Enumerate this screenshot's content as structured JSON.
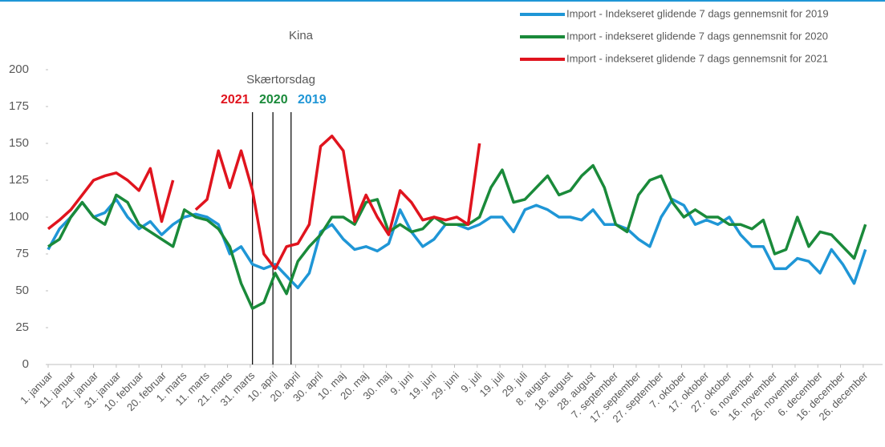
{
  "chart_data": {
    "type": "line",
    "title": "Kina",
    "x": [
      1,
      6,
      11,
      16,
      21,
      26,
      31,
      36,
      41,
      46,
      51,
      56,
      61,
      66,
      71,
      76,
      81,
      86,
      91,
      96,
      101,
      106,
      111,
      116,
      121,
      126,
      131,
      136,
      141,
      146,
      151,
      156,
      161,
      166,
      171,
      176,
      181,
      186,
      191,
      196,
      201,
      206,
      211,
      216,
      221,
      226,
      231,
      236,
      241,
      246,
      251,
      256,
      261,
      266,
      271,
      276,
      281,
      286,
      291,
      296,
      301,
      306,
      311,
      316,
      321,
      326,
      331,
      336,
      341,
      346,
      351,
      356,
      361
    ],
    "series": [
      {
        "name": "Import - Indekseret glidende 7 dags gennemsnit for 2019",
        "color": "#1f96d6",
        "values": [
          78,
          92,
          100,
          110,
          100,
          103,
          112,
          100,
          92,
          97,
          88,
          95,
          100,
          102,
          100,
          95,
          75,
          80,
          68,
          65,
          68,
          60,
          52,
          62,
          90,
          95,
          85,
          78,
          80,
          77,
          82,
          105,
          90,
          80,
          85,
          95,
          95,
          92,
          95,
          100,
          100,
          90,
          105,
          108,
          105,
          100,
          100,
          98,
          105,
          95,
          95,
          92,
          85,
          80,
          100,
          112,
          108,
          95,
          98,
          95,
          100,
          88,
          80,
          80,
          65,
          65,
          72,
          70,
          62,
          78,
          68,
          55,
          78
        ]
      },
      {
        "name": "Import - indekseret glidende 7 dags gennemsnit for 2020",
        "color": "#1a8a3a",
        "values": [
          80,
          85,
          100,
          110,
          100,
          95,
          115,
          110,
          95,
          90,
          85,
          80,
          105,
          100,
          98,
          92,
          80,
          55,
          38,
          42,
          62,
          48,
          70,
          80,
          88,
          100,
          100,
          95,
          110,
          112,
          90,
          95,
          90,
          92,
          100,
          95,
          95,
          95,
          100,
          120,
          132,
          110,
          112,
          120,
          128,
          115,
          118,
          128,
          135,
          120,
          95,
          90,
          115,
          125,
          128,
          110,
          100,
          105,
          100,
          100,
          95,
          95,
          92,
          98,
          75,
          78,
          100,
          80,
          90,
          88,
          80,
          72,
          95
        ]
      },
      {
        "name": "Import - indekseret glidende 7 dags gennemsnit for 2021",
        "color": "#e0141e",
        "values": [
          92,
          98,
          105,
          115,
          125,
          128,
          130,
          125,
          118,
          133,
          97,
          125,
          null,
          105,
          112,
          145,
          120,
          145,
          118,
          75,
          65,
          80,
          82,
          95,
          148,
          155,
          145,
          97,
          115,
          100,
          88,
          118,
          110,
          98,
          100,
          98,
          100,
          95,
          150,
          null,
          null,
          null,
          null,
          null,
          null,
          null,
          null,
          null,
          null,
          null,
          null,
          null,
          null,
          null,
          null,
          null,
          null,
          null,
          null,
          null,
          null,
          null,
          null,
          null,
          null,
          null,
          null,
          null,
          null,
          null,
          null,
          null,
          null
        ]
      }
    ],
    "xlim": [
      1,
      365
    ],
    "xticks": [
      {
        "value": 1,
        "label": "1. januar"
      },
      {
        "value": 11,
        "label": "11. januar"
      },
      {
        "value": 21,
        "label": "21. januar"
      },
      {
        "value": 31,
        "label": "31. januar"
      },
      {
        "value": 41,
        "label": "10. februar"
      },
      {
        "value": 51,
        "label": "20. februar"
      },
      {
        "value": 60,
        "label": "1. marts"
      },
      {
        "value": 70,
        "label": "11. marts"
      },
      {
        "value": 80,
        "label": "21. marts"
      },
      {
        "value": 90,
        "label": "31. marts"
      },
      {
        "value": 100,
        "label": "10. april"
      },
      {
        "value": 110,
        "label": "20. april"
      },
      {
        "value": 120,
        "label": "30. april"
      },
      {
        "value": 130,
        "label": "10. maj"
      },
      {
        "value": 140,
        "label": "20. maj"
      },
      {
        "value": 150,
        "label": "30. maj"
      },
      {
        "value": 160,
        "label": "9. juni"
      },
      {
        "value": 170,
        "label": "19. juni"
      },
      {
        "value": 180,
        "label": "29. juni"
      },
      {
        "value": 190,
        "label": "9. juli"
      },
      {
        "value": 200,
        "label": "19. juli"
      },
      {
        "value": 210,
        "label": "29. juli"
      },
      {
        "value": 220,
        "label": "8. august"
      },
      {
        "value": 230,
        "label": "18. august"
      },
      {
        "value": 240,
        "label": "28. august"
      },
      {
        "value": 250,
        "label": "7. september"
      },
      {
        "value": 260,
        "label": "17. september"
      },
      {
        "value": 270,
        "label": "27. september"
      },
      {
        "value": 280,
        "label": "7. oktober"
      },
      {
        "value": 290,
        "label": "17. oktober"
      },
      {
        "value": 300,
        "label": "27. oktober"
      },
      {
        "value": 310,
        "label": "6. november"
      },
      {
        "value": 320,
        "label": "16. november"
      },
      {
        "value": 330,
        "label": "26. november"
      },
      {
        "value": 340,
        "label": "6. december"
      },
      {
        "value": 350,
        "label": "16. december"
      },
      {
        "value": 360,
        "label": "26. december"
      }
    ],
    "ylim": [
      0,
      200
    ],
    "yticks": [
      0,
      25,
      50,
      75,
      100,
      125,
      150,
      175,
      200
    ],
    "legend": "top-right",
    "annotation": {
      "text": "Skærtorsdag",
      "markers": [
        {
          "label": "2021",
          "x": 91,
          "color": "#e0141e"
        },
        {
          "label": "2020",
          "x": 100,
          "color": "#1a8a3a"
        },
        {
          "label": "2019",
          "x": 108,
          "color": "#1f96d6"
        }
      ]
    }
  }
}
